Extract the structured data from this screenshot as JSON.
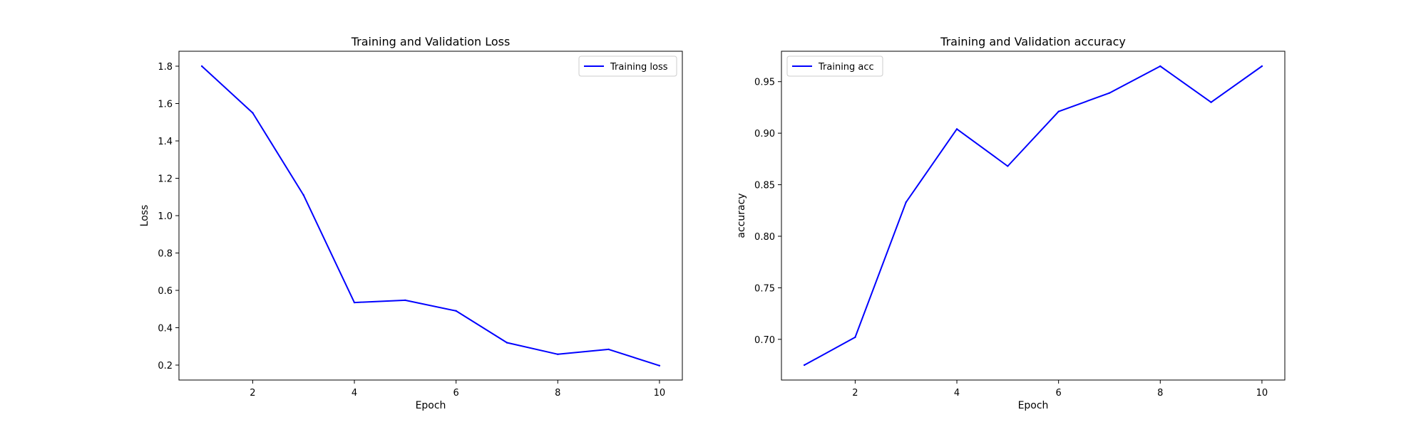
{
  "chart_data": [
    {
      "type": "line",
      "title": "Training and Validation Loss",
      "xlabel": "Epoch",
      "ylabel": "Loss",
      "x": [
        1,
        2,
        3,
        4,
        5,
        6,
        7,
        8,
        9,
        10
      ],
      "series": [
        {
          "name": "Training loss",
          "color": "#0000ff",
          "values": [
            1.8,
            1.55,
            1.11,
            0.535,
            0.547,
            0.49,
            0.32,
            0.258,
            0.284,
            0.197
          ]
        }
      ],
      "xlim": [
        0.55,
        10.45
      ],
      "ylim": [
        0.12,
        1.88
      ],
      "xticks": [
        2,
        4,
        6,
        8,
        10
      ],
      "yticks": [
        0.2,
        0.4,
        0.6,
        0.8,
        1.0,
        1.2,
        1.4,
        1.6,
        1.8
      ],
      "ytick_labels": [
        "0.2",
        "0.4",
        "0.6",
        "0.8",
        "1.0",
        "1.2",
        "1.4",
        "1.6",
        "1.8"
      ],
      "grid": false,
      "legend": "upper-right"
    },
    {
      "type": "line",
      "title": "Training and Validation accuracy",
      "xlabel": "Epoch",
      "ylabel": "accuracy",
      "x": [
        1,
        2,
        3,
        4,
        5,
        6,
        7,
        8,
        9,
        10
      ],
      "series": [
        {
          "name": "Training acc",
          "color": "#0000ff",
          "values": [
            0.675,
            0.702,
            0.833,
            0.904,
            0.868,
            0.921,
            0.939,
            0.965,
            0.93,
            0.965
          ]
        }
      ],
      "xlim": [
        0.55,
        10.45
      ],
      "ylim": [
        0.6605,
        0.9795
      ],
      "xticks": [
        2,
        4,
        6,
        8,
        10
      ],
      "yticks": [
        0.7,
        0.75,
        0.8,
        0.85,
        0.9,
        0.95
      ],
      "ytick_labels": [
        "0.70",
        "0.75",
        "0.80",
        "0.85",
        "0.90",
        "0.95"
      ],
      "grid": false,
      "legend": "upper-left"
    }
  ]
}
